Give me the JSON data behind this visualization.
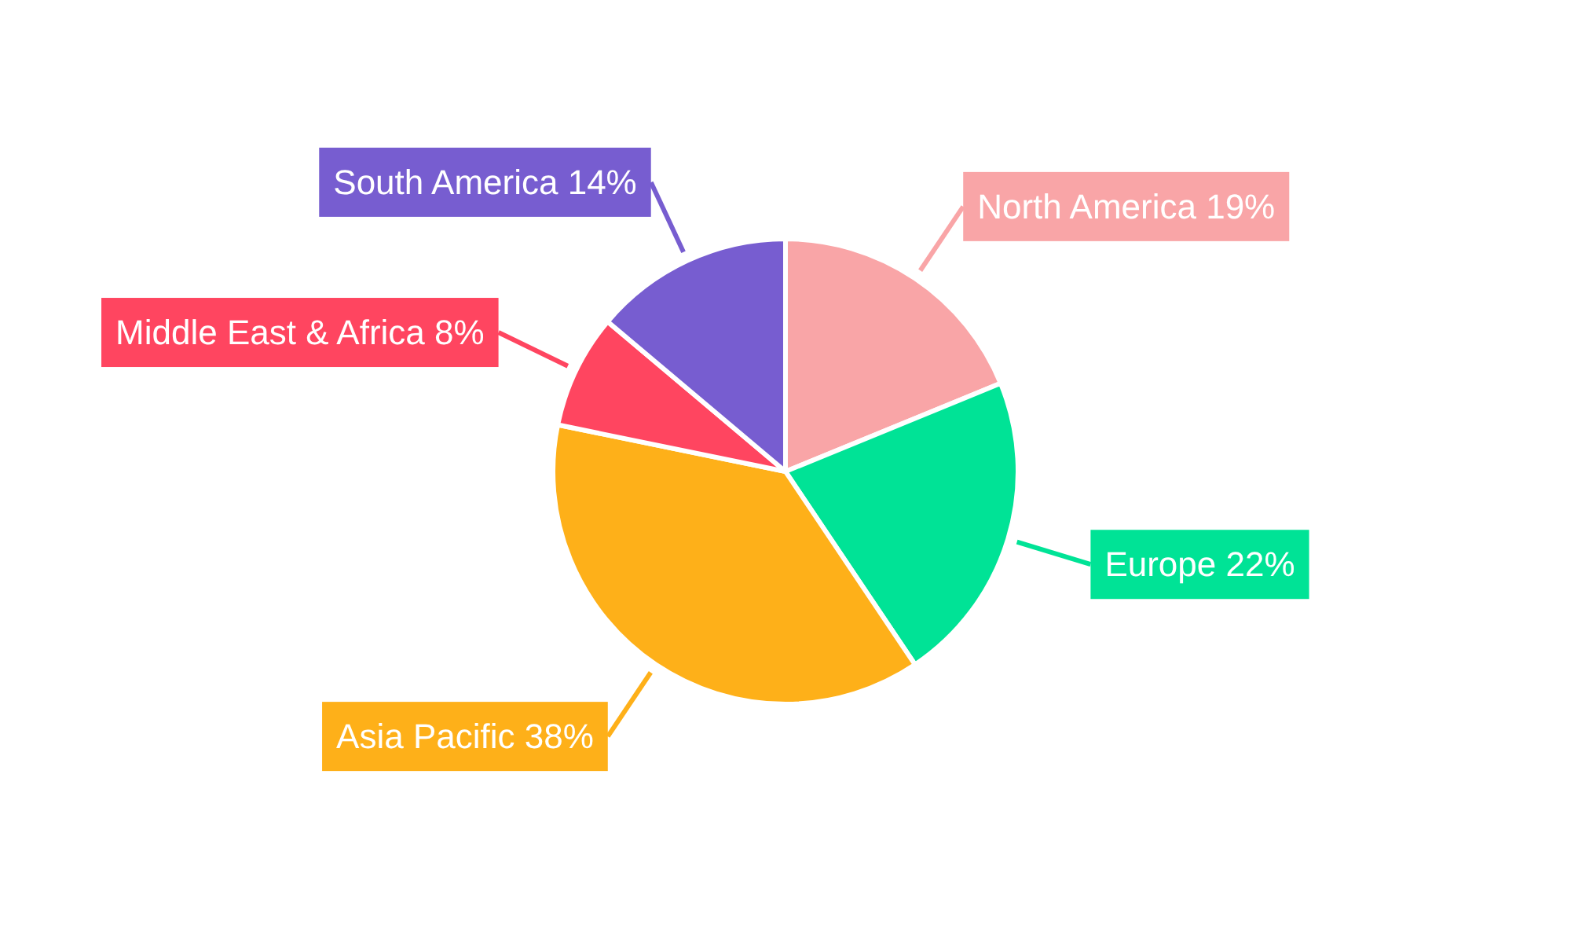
{
  "chart_data": {
    "type": "pie",
    "categories": [
      "North America",
      "Europe",
      "Asia Pacific",
      "Middle East & Africa",
      "South America"
    ],
    "values": [
      19,
      22,
      38,
      8,
      14
    ],
    "value_labels": [
      "19%",
      "22%",
      "38%",
      "8%",
      "14%"
    ],
    "colors": [
      "#f9a5a7",
      "#00e396",
      "#feb019",
      "#ff4560",
      "#775dd0"
    ]
  }
}
